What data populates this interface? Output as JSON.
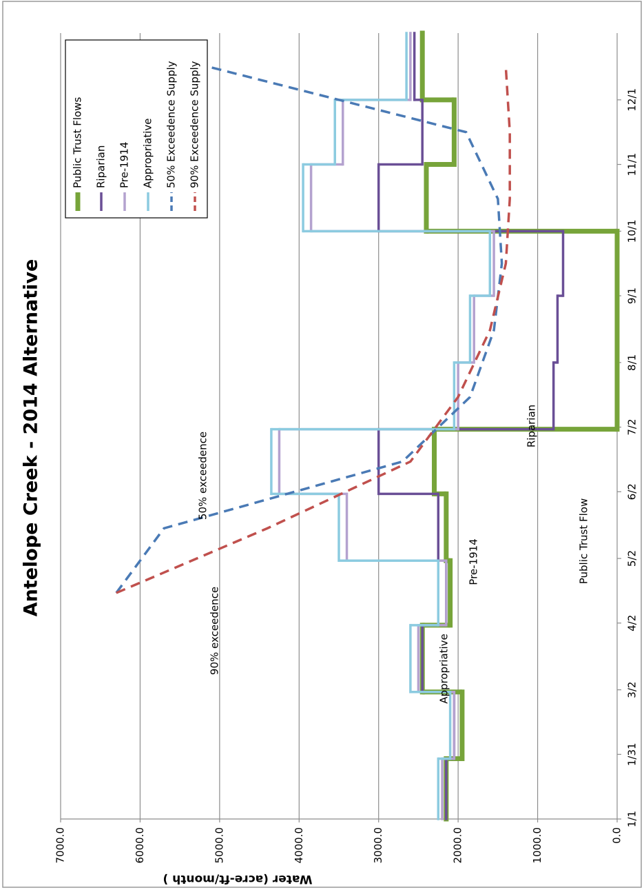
{
  "chart_data": {
    "type": "line",
    "title": "Antelope Creek - 2014 Alternative",
    "y_label": "Water (acre-ft/month )",
    "xlim": [
      0,
      365
    ],
    "xticks": [
      {
        "value": 0,
        "label": "1/1"
      },
      {
        "value": 30,
        "label": "1/31"
      },
      {
        "value": 60,
        "label": "3/2"
      },
      {
        "value": 91,
        "label": "4/2"
      },
      {
        "value": 121,
        "label": "5/2"
      },
      {
        "value": 152,
        "label": "6/2"
      },
      {
        "value": 182,
        "label": "7/2"
      },
      {
        "value": 212,
        "label": "8/1"
      },
      {
        "value": 243,
        "label": "9/1"
      },
      {
        "value": 273,
        "label": "10/1"
      },
      {
        "value": 304,
        "label": "11/1"
      },
      {
        "value": 334,
        "label": "12/1"
      }
    ],
    "ylim": [
      0,
      7000
    ],
    "yticks": [
      {
        "value": 0,
        "label": "0.0"
      },
      {
        "value": 1000,
        "label": "1000.0"
      },
      {
        "value": 2000,
        "label": "2000.0"
      },
      {
        "value": 3000,
        "label": "3000.0"
      },
      {
        "value": 4000,
        "label": "4000.0"
      },
      {
        "value": 5000,
        "label": "5000.0"
      },
      {
        "value": 6000,
        "label": "6000.0"
      },
      {
        "value": 7000,
        "label": "7000.0"
      }
    ],
    "grid": true,
    "legend": "upper right",
    "rotation": -90,
    "series": [
      {
        "name": "Public Trust Flows",
        "color": "#77a43a",
        "line_style": "step",
        "x": [
          0,
          28,
          59,
          90,
          120,
          151,
          181,
          212,
          243,
          273,
          304,
          334
        ],
        "values": [
          2150,
          1950,
          2450,
          2100,
          2150,
          2300,
          0,
          0,
          0,
          2400,
          2050,
          2450
        ]
      },
      {
        "name": "Riparian",
        "color": "#6a4f96",
        "line_style": "step",
        "x": [
          0,
          28,
          59,
          90,
          120,
          151,
          181,
          212,
          243,
          273,
          304,
          334
        ],
        "values": [
          2150,
          2050,
          2450,
          2150,
          2250,
          3000,
          800,
          750,
          680,
          3000,
          2450,
          2550
        ]
      },
      {
        "name": "Pre-1914",
        "color": "#b4a2cf",
        "line_style": "step",
        "x": [
          0,
          28,
          59,
          90,
          120,
          151,
          181,
          212,
          243,
          273,
          304,
          334
        ],
        "values": [
          2200,
          2050,
          2500,
          2150,
          3400,
          4250,
          2000,
          1800,
          1550,
          3850,
          3450,
          2600
        ]
      },
      {
        "name": "Appropriative",
        "color": "#8ccbe0",
        "line_style": "step",
        "x": [
          0,
          28,
          59,
          90,
          120,
          151,
          181,
          212,
          243,
          273,
          304,
          334
        ],
        "values": [
          2250,
          2100,
          2600,
          2250,
          3500,
          4350,
          2050,
          1850,
          1600,
          3950,
          3550,
          2650
        ]
      },
      {
        "name": "50% Exceedence Supply",
        "color": "#4a7ab5",
        "line_style": "dashed",
        "x": [
          105,
          135,
          166,
          196,
          227,
          258,
          288,
          319,
          349
        ],
        "values": [
          6300,
          5700,
          2700,
          1850,
          1550,
          1450,
          1500,
          1900,
          5100
        ]
      },
      {
        "name": "90% Exceedence Supply",
        "color": "#c0504d",
        "line_style": "dashed",
        "x": [
          105,
          135,
          166,
          196,
          227,
          258,
          288,
          319,
          349
        ],
        "values": [
          6300,
          4400,
          2600,
          2000,
          1600,
          1400,
          1350,
          1350,
          1400
        ]
      }
    ],
    "annotations": [
      "50% exceedence",
      "90% exceedence",
      "Appropriative",
      "Pre-1914",
      "Riparian",
      "Public Trust Flow"
    ]
  }
}
